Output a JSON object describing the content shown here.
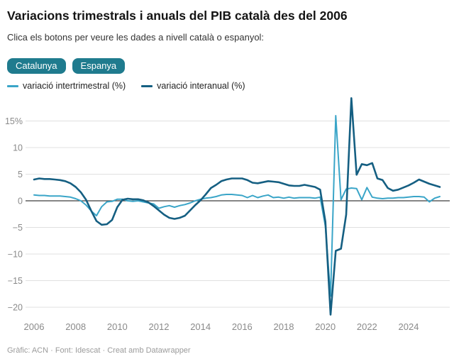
{
  "header": {
    "title": "Variacions trimestrals i anuals del PIB català des del 2006",
    "subtitle": "Clica els botons per veure les dades a nivell català o espanyol:"
  },
  "buttons": [
    {
      "label": "Catalunya",
      "color": "#1f7b8e"
    },
    {
      "label": "Espanya",
      "color": "#1f7b8e"
    }
  ],
  "legend": [
    {
      "label": "variació intertrimestral (%)",
      "color": "#3aa5c8"
    },
    {
      "label": "variació interanual (%)",
      "color": "#155f82"
    }
  ],
  "footer": {
    "text": "Gràfic: ACN · Font: Idescat · Creat amb Datawrapper"
  },
  "chart_data": {
    "type": "line",
    "title": "Variacions trimestrals i anuals del PIB català des del 2006",
    "x_unit": "quarter",
    "x_start": "2006-Q1",
    "x_end": "2025-Q3",
    "grid": "horizontal",
    "legend_position": "top-left",
    "ylim": [
      -22,
      20
    ],
    "y_ticks": [
      {
        "label": "15%",
        "value": 15
      },
      {
        "label": "10",
        "value": 10
      },
      {
        "label": "5",
        "value": 5
      },
      {
        "label": "0",
        "value": 0
      },
      {
        "label": "−5",
        "value": -5
      },
      {
        "label": "−10",
        "value": -10
      },
      {
        "label": "−15",
        "value": -15
      },
      {
        "label": "−20",
        "value": -20
      }
    ],
    "x_ticks": [
      {
        "label": "2006",
        "index": 0
      },
      {
        "label": "2008",
        "index": 8
      },
      {
        "label": "2010",
        "index": 16
      },
      {
        "label": "2012",
        "index": 24
      },
      {
        "label": "2014",
        "index": 32
      },
      {
        "label": "2016",
        "index": 40
      },
      {
        "label": "2018",
        "index": 48
      },
      {
        "label": "2020",
        "index": 56
      },
      {
        "label": "2022",
        "index": 64
      },
      {
        "label": "2024",
        "index": 72
      }
    ],
    "series": [
      {
        "name": "variació intertrimestral (%)",
        "color": "#3aa5c8",
        "width": 2,
        "values": [
          1.1,
          1.0,
          1.0,
          0.9,
          0.9,
          0.9,
          0.8,
          0.7,
          0.4,
          0.0,
          -0.8,
          -1.9,
          -2.8,
          -1.1,
          -0.2,
          -0.1,
          0.3,
          0.3,
          0.0,
          -0.1,
          0.0,
          -0.2,
          -0.4,
          -0.6,
          -1.4,
          -1.1,
          -0.9,
          -1.2,
          -0.9,
          -0.7,
          -0.4,
          0.0,
          0.3,
          0.5,
          0.6,
          0.8,
          1.1,
          1.2,
          1.2,
          1.1,
          1.0,
          0.6,
          1.0,
          0.6,
          0.9,
          1.1,
          0.6,
          0.7,
          0.5,
          0.7,
          0.5,
          0.6,
          0.6,
          0.6,
          0.5,
          0.7,
          -4.8,
          -17.9,
          16.0,
          0.2,
          2.2,
          2.4,
          2.3,
          0.2,
          2.5,
          0.7,
          0.5,
          0.4,
          0.5,
          0.5,
          0.6,
          0.6,
          0.7,
          0.8,
          0.8,
          0.7,
          -0.2,
          0.5,
          0.8
        ]
      },
      {
        "name": "variació interanual (%)",
        "color": "#155f82",
        "width": 2.6,
        "values": [
          4.0,
          4.2,
          4.1,
          4.1,
          4.0,
          3.9,
          3.7,
          3.3,
          2.6,
          1.6,
          0.2,
          -1.9,
          -3.8,
          -4.5,
          -4.4,
          -3.6,
          -1.2,
          0.2,
          0.4,
          0.3,
          0.3,
          0.1,
          -0.3,
          -1.0,
          -1.8,
          -2.6,
          -3.2,
          -3.4,
          -3.2,
          -2.8,
          -1.8,
          -0.8,
          0.1,
          1.2,
          2.4,
          3.0,
          3.7,
          4.0,
          4.2,
          4.2,
          4.2,
          3.9,
          3.4,
          3.3,
          3.5,
          3.7,
          3.6,
          3.5,
          3.2,
          2.9,
          2.8,
          2.8,
          3.0,
          2.8,
          2.6,
          2.1,
          -3.9,
          -21.4,
          -9.4,
          -9.0,
          -2.6,
          19.3,
          4.9,
          6.9,
          6.7,
          7.1,
          4.2,
          3.9,
          2.4,
          1.9,
          2.1,
          2.5,
          2.9,
          3.4,
          4.0,
          3.6,
          3.2,
          2.9,
          2.6
        ]
      }
    ]
  }
}
